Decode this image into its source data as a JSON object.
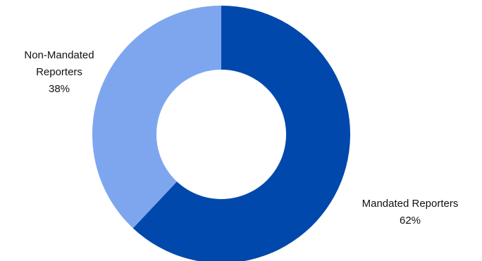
{
  "chart_data": {
    "type": "pie",
    "variant": "donut",
    "slices": [
      {
        "name": "Mandated Reporters",
        "value": 62,
        "value_label": "62%",
        "color": "#0048AB"
      },
      {
        "name": "Non-Mandated Reporters",
        "value": 38,
        "value_label": "38%",
        "color": "#7EA6EF"
      }
    ],
    "start": "12 o'clock",
    "direction": "clockwise",
    "legend": "none"
  }
}
